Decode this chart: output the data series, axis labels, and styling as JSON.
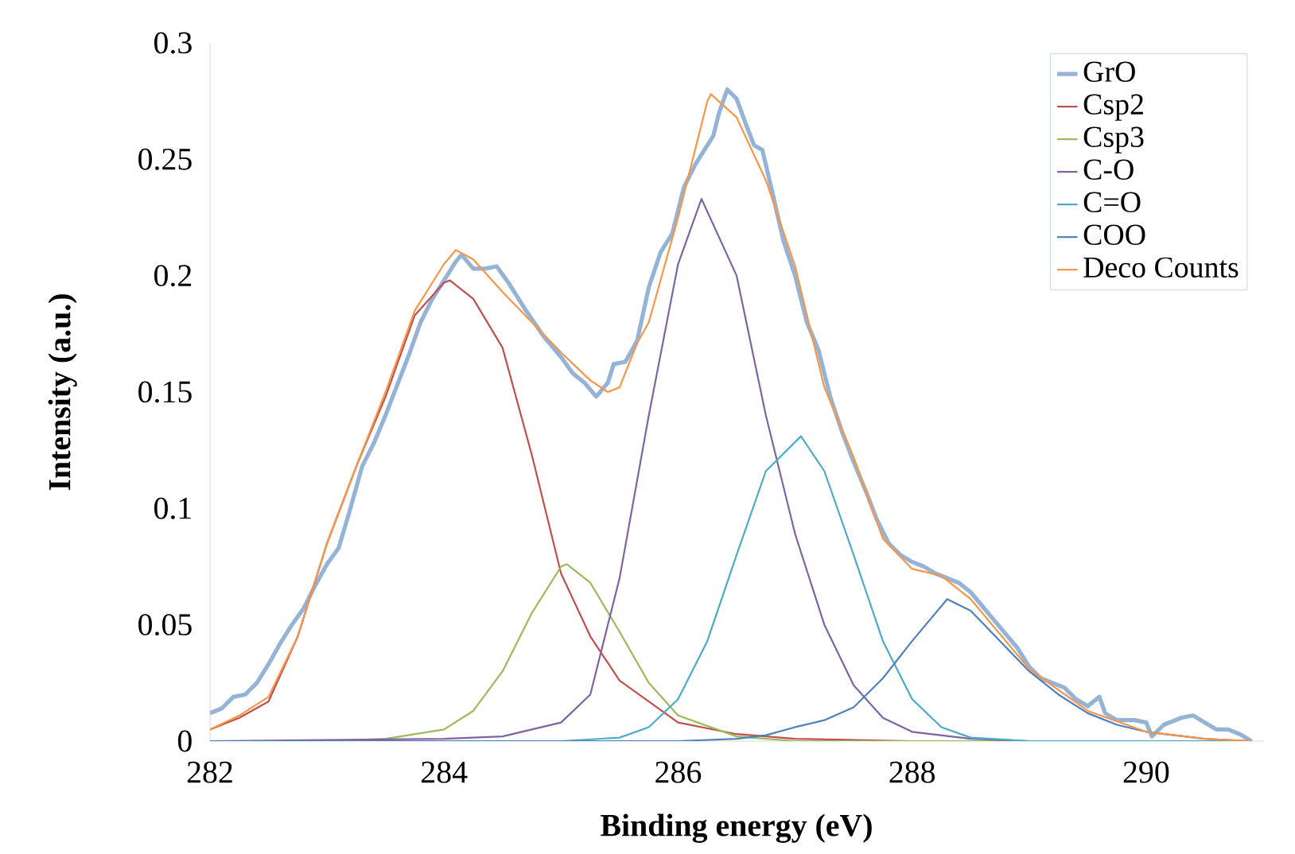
{
  "chart_data": {
    "type": "line",
    "xlabel": "Binding energy (eV)",
    "ylabel": "Intensity (a.u.)",
    "xlim": [
      282,
      291
    ],
    "ylim": [
      0,
      0.3
    ],
    "xticks": [
      282,
      284,
      286,
      288,
      290
    ],
    "yticks": [
      0,
      0.05,
      0.1,
      0.15,
      0.2,
      0.25,
      0.3
    ],
    "grid": false,
    "legend": "top right",
    "marker": "none",
    "line_style": "solid",
    "series": [
      {
        "name": "GrO",
        "color": "#95b3d7",
        "x": [
          282,
          282.1,
          282.2,
          282.3,
          282.4,
          282.5,
          282.6,
          282.7,
          282.8,
          282.9,
          283,
          283.1,
          283.2,
          283.3,
          283.4,
          283.5,
          283.6,
          283.7,
          283.8,
          283.9,
          284,
          284.1,
          284.15,
          284.25,
          284.35,
          284.45,
          284.55,
          284.7,
          284.85,
          285,
          285.1,
          285.2,
          285.3,
          285.4,
          285.45,
          285.55,
          285.65,
          285.75,
          285.85,
          285.95,
          286.05,
          286.15,
          286.3,
          286.35,
          286.42,
          286.5,
          286.58,
          286.65,
          286.72,
          286.8,
          286.9,
          287,
          287.1,
          287.2,
          287.3,
          287.4,
          287.5,
          287.6,
          287.7,
          287.8,
          287.9,
          288,
          288.1,
          288.2,
          288.3,
          288.4,
          288.5,
          288.6,
          288.7,
          288.8,
          288.9,
          289,
          289.1,
          289.2,
          289.3,
          289.4,
          289.5,
          289.6,
          289.65,
          289.75,
          289.9,
          290,
          290.05,
          290.15,
          290.3,
          290.4,
          290.5,
          290.6,
          290.7,
          290.8,
          290.9
        ],
        "values": [
          0.012,
          0.014,
          0.019,
          0.02,
          0.025,
          0.033,
          0.042,
          0.05,
          0.057,
          0.067,
          0.076,
          0.083,
          0.1,
          0.118,
          0.128,
          0.14,
          0.153,
          0.166,
          0.18,
          0.19,
          0.198,
          0.206,
          0.209,
          0.203,
          0.203,
          0.204,
          0.197,
          0.185,
          0.174,
          0.165,
          0.158,
          0.154,
          0.148,
          0.154,
          0.162,
          0.163,
          0.172,
          0.195,
          0.21,
          0.218,
          0.238,
          0.248,
          0.26,
          0.27,
          0.28,
          0.276,
          0.265,
          0.256,
          0.254,
          0.237,
          0.215,
          0.2,
          0.18,
          0.168,
          0.148,
          0.133,
          0.12,
          0.108,
          0.095,
          0.085,
          0.08,
          0.077,
          0.075,
          0.072,
          0.07,
          0.068,
          0.064,
          0.058,
          0.052,
          0.046,
          0.04,
          0.032,
          0.027,
          0.025,
          0.023,
          0.018,
          0.015,
          0.019,
          0.012,
          0.009,
          0.009,
          0.008,
          0.002,
          0.007,
          0.01,
          0.011,
          0.008,
          0.005,
          0.005,
          0.003,
          0
        ]
      },
      {
        "name": "Csp2",
        "color": "#c0504d",
        "x": [
          282,
          282.25,
          282.5,
          282.75,
          283,
          283.25,
          283.5,
          283.75,
          284,
          284.05,
          284.25,
          284.5,
          284.75,
          285,
          285.25,
          285.5,
          286,
          286.5,
          287,
          288,
          290.9
        ],
        "values": [
          0.005,
          0.01,
          0.017,
          0.045,
          0.085,
          0.118,
          0.148,
          0.183,
          0.197,
          0.198,
          0.19,
          0.169,
          0.123,
          0.072,
          0.045,
          0.026,
          0.008,
          0.003,
          0.001,
          0,
          0
        ]
      },
      {
        "name": "Csp3",
        "color": "#9bbb59",
        "x": [
          282,
          283,
          283.5,
          284,
          284.25,
          284.5,
          284.75,
          285,
          285.05,
          285.25,
          285.5,
          285.75,
          286,
          286.5,
          287,
          290.9
        ],
        "values": [
          0,
          0,
          0.001,
          0.005,
          0.013,
          0.03,
          0.055,
          0.075,
          0.076,
          0.068,
          0.047,
          0.025,
          0.011,
          0.002,
          0,
          0
        ]
      },
      {
        "name": "C-O",
        "color": "#8064a2",
        "x": [
          282,
          284,
          284.5,
          285,
          285.25,
          285.5,
          285.75,
          286,
          286.2,
          286.5,
          286.75,
          287,
          287.25,
          287.5,
          287.75,
          288,
          288.5,
          289,
          290.9
        ],
        "values": [
          0,
          0.001,
          0.002,
          0.008,
          0.02,
          0.07,
          0.14,
          0.205,
          0.233,
          0.2,
          0.14,
          0.089,
          0.05,
          0.024,
          0.01,
          0.004,
          0.001,
          0,
          0
        ]
      },
      {
        "name": "C=O",
        "color": "#4bacc6",
        "x": [
          282,
          285,
          285.5,
          285.75,
          286,
          286.25,
          286.5,
          286.75,
          287.05,
          287.25,
          287.5,
          287.75,
          288,
          288.25,
          288.5,
          289,
          290.9
        ],
        "values": [
          0,
          0,
          0.0015,
          0.006,
          0.018,
          0.043,
          0.08,
          0.116,
          0.131,
          0.116,
          0.08,
          0.043,
          0.018,
          0.006,
          0.0015,
          0,
          0
        ]
      },
      {
        "name": "COO",
        "color": "#4f81bd",
        "x": [
          282,
          286,
          286.5,
          286.75,
          287,
          287.25,
          287.5,
          287.75,
          288,
          288.3,
          288.5,
          288.75,
          289,
          289.25,
          289.5,
          289.75,
          290,
          290.5,
          290.9
        ],
        "values": [
          0,
          0,
          0.001,
          0.0025,
          0.006,
          0.009,
          0.0145,
          0.027,
          0.043,
          0.061,
          0.056,
          0.043,
          0.03,
          0.02,
          0.012,
          0.007,
          0.004,
          0.001,
          0
        ]
      },
      {
        "name": "Deco Counts",
        "color": "#f79646",
        "x": [
          282,
          282.25,
          282.5,
          282.75,
          283,
          283.25,
          283.5,
          283.75,
          284,
          284.1,
          284.25,
          284.5,
          284.75,
          285,
          285.25,
          285.4,
          285.5,
          285.65,
          285.75,
          286,
          286.25,
          286.28,
          286.5,
          286.75,
          287,
          287.25,
          287.5,
          287.75,
          288,
          288.25,
          288.5,
          288.75,
          289,
          289.5,
          290,
          290.5,
          290.9
        ],
        "values": [
          0.005,
          0.011,
          0.019,
          0.045,
          0.085,
          0.118,
          0.15,
          0.185,
          0.205,
          0.211,
          0.207,
          0.193,
          0.18,
          0.167,
          0.155,
          0.15,
          0.152,
          0.171,
          0.18,
          0.225,
          0.275,
          0.278,
          0.268,
          0.241,
          0.204,
          0.152,
          0.122,
          0.087,
          0.074,
          0.071,
          0.061,
          0.046,
          0.031,
          0.013,
          0.004,
          0.001,
          0
        ]
      }
    ]
  }
}
